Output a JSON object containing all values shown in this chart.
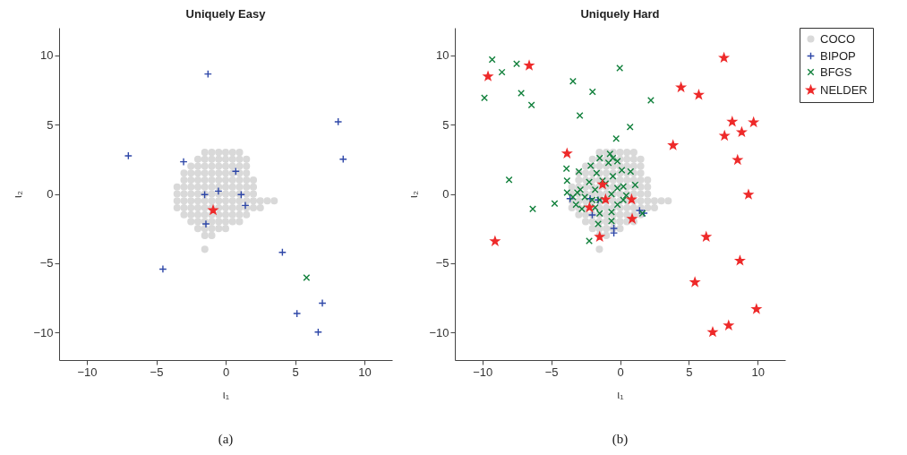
{
  "chart_data": [
    {
      "type": "scatter",
      "title": "Uniquely Easy",
      "xlabel": "ι₁",
      "ylabel": "ι₂",
      "xlim": [
        -12,
        12
      ],
      "ylim": [
        -12,
        12
      ],
      "xticks": [
        -10,
        -5,
        0,
        5,
        10
      ],
      "yticks": [
        -10,
        -5,
        0,
        5,
        10
      ],
      "grid": false,
      "annotations": [
        "(a)"
      ],
      "series": [
        {
          "color": "#d9d9d9",
          "marker": "circle",
          "x": [
            -1.5,
            -1,
            -0.5,
            0,
            0.5,
            1,
            -2,
            -1.5,
            -1,
            -0.5,
            0,
            0.5,
            1,
            1.5,
            -2.5,
            -2,
            -1.5,
            -1,
            -0.5,
            0,
            0.5,
            1,
            1.5,
            -3,
            -2.5,
            -2,
            -1.5,
            -1,
            -0.5,
            0,
            0.5,
            1,
            1.5,
            -3,
            -2.5,
            -2,
            -1.5,
            -1,
            -0.5,
            0,
            0.5,
            1,
            1.5,
            2,
            -3.5,
            -3,
            -2.5,
            -2,
            -1.5,
            -1,
            -0.5,
            0,
            0.5,
            1,
            1.5,
            2,
            -3.5,
            -3,
            -2.5,
            -2,
            -1.5,
            -1,
            -0.5,
            0,
            0.5,
            1,
            1.5,
            2,
            -3.5,
            -3,
            -2.5,
            -2,
            -1.5,
            -1,
            -0.5,
            0,
            0.5,
            1,
            1.5,
            2,
            2.5,
            3,
            3.5,
            -3.5,
            -3,
            -2.5,
            -2,
            -1.5,
            -1,
            -0.5,
            0,
            0.5,
            1,
            1.5,
            2,
            2.5,
            -3,
            -2.5,
            -2,
            -1.5,
            -1,
            -0.5,
            0,
            0.5,
            1,
            1.5,
            -2.5,
            -2,
            -1.5,
            -1,
            -0.5,
            0,
            0.5,
            1,
            -2,
            -1.5,
            -1,
            -0.5,
            0,
            -1.5,
            -1,
            -1.5
          ],
          "values": [
            3,
            3,
            3,
            3,
            3,
            3,
            2.5,
            2.5,
            2.5,
            2.5,
            2.5,
            2.5,
            2.5,
            2.5,
            2,
            2,
            2,
            2,
            2,
            2,
            2,
            2,
            2,
            1.5,
            1.5,
            1.5,
            1.5,
            1.5,
            1.5,
            1.5,
            1.5,
            1.5,
            1.5,
            1,
            1,
            1,
            1,
            1,
            1,
            1,
            1,
            1,
            1,
            1,
            0.5,
            0.5,
            0.5,
            0.5,
            0.5,
            0.5,
            0.5,
            0.5,
            0.5,
            0.5,
            0.5,
            0.5,
            0,
            0,
            0,
            0,
            0,
            0,
            0,
            0,
            0,
            0,
            0,
            0,
            -0.5,
            -0.5,
            -0.5,
            -0.5,
            -0.5,
            -0.5,
            -0.5,
            -0.5,
            -0.5,
            -0.5,
            -0.5,
            -0.5,
            -0.5,
            -0.5,
            -0.5,
            -1,
            -1,
            -1,
            -1,
            -1,
            -1,
            -1,
            -1,
            -1,
            -1,
            -1,
            -1,
            -1,
            -1.5,
            -1.5,
            -1.5,
            -1.5,
            -1.5,
            -1.5,
            -1.5,
            -1.5,
            -1.5,
            -1.5,
            -2,
            -2,
            -2,
            -2,
            -2,
            -2,
            -2,
            -2,
            -2.5,
            -2.5,
            -2.5,
            -2.5,
            -2.5,
            -3,
            -3,
            -4
          ]
        },
        {
          "color": "#2e47a8",
          "marker": "cross",
          "x": [
            -1.27,
            -7.01,
            -3.03,
            0.73,
            -1.51,
            -0.52,
            1.12,
            1.42,
            -1.42,
            8.11,
            8.47,
            -4.52,
            4.09,
            5.14,
            6.97,
            6.67
          ],
          "values": [
            8.66,
            2.75,
            2.32,
            1.63,
            -0.05,
            0.2,
            -0.05,
            -0.83,
            -2.17,
            5.21,
            2.51,
            -5.43,
            -4.22,
            -8.64,
            -7.89,
            -9.98
          ]
        },
        {
          "color": "#0f7f3a",
          "marker": "x",
          "x": [
            5.83
          ],
          "values": [
            -6.05
          ]
        },
        {
          "color": "#ee2a2a",
          "marker": "star",
          "x": [
            -0.9
          ],
          "values": [
            -1.18
          ]
        }
      ]
    },
    {
      "type": "scatter",
      "title": "Uniquely Hard",
      "xlabel": "ι₁",
      "ylabel": "ι₂",
      "xlim": [
        -12,
        12
      ],
      "ylim": [
        -12,
        12
      ],
      "xticks": [
        -10,
        -5,
        0,
        5,
        10
      ],
      "yticks": [
        -10,
        -5,
        0,
        5,
        10
      ],
      "grid": false,
      "legend": "top right",
      "annotations": [
        "(b)"
      ],
      "series": [
        {
          "name": "COCO",
          "color": "#d9d9d9",
          "marker": "circle",
          "x": [
            -1.5,
            -1,
            -0.5,
            0,
            0.5,
            1,
            -2,
            -1.5,
            -1,
            -0.5,
            0,
            0.5,
            1,
            1.5,
            -2.5,
            -2,
            -1.5,
            -1,
            -0.5,
            0,
            0.5,
            1,
            1.5,
            -3,
            -2.5,
            -2,
            -1.5,
            -1,
            -0.5,
            0,
            0.5,
            1,
            1.5,
            -3,
            -2.5,
            -2,
            -1.5,
            -1,
            -0.5,
            0,
            0.5,
            1,
            1.5,
            2,
            -3.5,
            -3,
            -2.5,
            -2,
            -1.5,
            -1,
            -0.5,
            0,
            0.5,
            1,
            1.5,
            2,
            -3.5,
            -3,
            -2.5,
            -2,
            -1.5,
            -1,
            -0.5,
            0,
            0.5,
            1,
            1.5,
            2,
            -3.5,
            -3,
            -2.5,
            -2,
            -1.5,
            -1,
            -0.5,
            0,
            0.5,
            1,
            1.5,
            2,
            2.5,
            3,
            3.5,
            -3.5,
            -3,
            -2.5,
            -2,
            -1.5,
            -1,
            -0.5,
            0,
            0.5,
            1,
            1.5,
            2,
            2.5,
            -3,
            -2.5,
            -2,
            -1.5,
            -1,
            -0.5,
            0,
            0.5,
            1,
            1.5,
            -2.5,
            -2,
            -1.5,
            -1,
            -0.5,
            0,
            0.5,
            1,
            -2,
            -1.5,
            -1,
            -0.5,
            0,
            -1.5,
            -1,
            -1.5
          ],
          "values": [
            3,
            3,
            3,
            3,
            3,
            3,
            2.5,
            2.5,
            2.5,
            2.5,
            2.5,
            2.5,
            2.5,
            2.5,
            2,
            2,
            2,
            2,
            2,
            2,
            2,
            2,
            2,
            1.5,
            1.5,
            1.5,
            1.5,
            1.5,
            1.5,
            1.5,
            1.5,
            1.5,
            1.5,
            1,
            1,
            1,
            1,
            1,
            1,
            1,
            1,
            1,
            1,
            1,
            0.5,
            0.5,
            0.5,
            0.5,
            0.5,
            0.5,
            0.5,
            0.5,
            0.5,
            0.5,
            0.5,
            0.5,
            0,
            0,
            0,
            0,
            0,
            0,
            0,
            0,
            0,
            0,
            0,
            0,
            -0.5,
            -0.5,
            -0.5,
            -0.5,
            -0.5,
            -0.5,
            -0.5,
            -0.5,
            -0.5,
            -0.5,
            -0.5,
            -0.5,
            -0.5,
            -0.5,
            -0.5,
            -1,
            -1,
            -1,
            -1,
            -1,
            -1,
            -1,
            -1,
            -1,
            -1,
            -1,
            -1,
            -1,
            -1.5,
            -1.5,
            -1.5,
            -1.5,
            -1.5,
            -1.5,
            -1.5,
            -1.5,
            -1.5,
            -1.5,
            -2,
            -2,
            -2,
            -2,
            -2,
            -2,
            -2,
            -2,
            -2.5,
            -2.5,
            -2.5,
            -2.5,
            -2.5,
            -3,
            -3,
            -4
          ]
        },
        {
          "name": "BIPOP",
          "color": "#2e47a8",
          "marker": "cross",
          "x": [
            -3.63,
            -2.17,
            -1.59,
            -2.02,
            -0.45,
            -0.45,
            1.42,
            1.74
          ],
          "values": [
            -0.34,
            -0.34,
            -0.44,
            -1.52,
            -2.49,
            -2.82,
            -1.2,
            -1.39
          ]
        },
        {
          "name": "BFGS",
          "color": "#0f7f3a",
          "marker": "x",
          "x": [
            -9.29,
            -9.85,
            -8.58,
            -7.51,
            -7.18,
            -6.43,
            -8.06,
            -6.34,
            -4.75,
            -3.42,
            -2,
            -2.92,
            -0.02,
            2.24,
            0.73,
            -0.28,
            -2.24,
            -3.89,
            -3.85,
            -2.99,
            -2.13,
            -1.48,
            -0.73,
            -0.52,
            -0.84,
            -0.19,
            0.13,
            0.77,
            -1.7,
            -2.24,
            -1.27,
            -0.52,
            0.24,
            1.1,
            -2.88,
            -3.42,
            -3.85,
            -3.2,
            -2.77,
            -1.81,
            -1.48,
            -0.62,
            -0.19,
            0.24,
            -0.62,
            -1.48,
            -0.62,
            1.63,
            -1.59,
            -2.02,
            -2.56,
            -3.1,
            -1.05,
            -1.81,
            -0.19,
            0.45
          ],
          "values": [
            9.7,
            6.94,
            8.79,
            9.4,
            7.28,
            6.42,
            1.02,
            -1.09,
            -0.7,
            8.14,
            7.37,
            5.66,
            9.09,
            6.76,
            4.84,
            4,
            -3.4,
            1.82,
            0.96,
            1.61,
            2.04,
            2.58,
            2.9,
            2.58,
            2.25,
            2.36,
            1.72,
            1.61,
            1.5,
            0.85,
            0.96,
            1.28,
            0.53,
            0.64,
            0.31,
            -0.23,
            0.1,
            -0.77,
            -1.09,
            -0.98,
            -0.44,
            -0.01,
            -0.77,
            -0.44,
            -1.31,
            -1.41,
            -1.95,
            -1.41,
            -2.17,
            -0.44,
            -0.23,
            0.1,
            0.74,
            0.31,
            0.42,
            -0.12
          ]
        },
        {
          "name": "NELDER",
          "color": "#ee2a2a",
          "marker": "star",
          "x": [
            -9.59,
            -6.6,
            7.55,
            4.43,
            5.72,
            8.15,
            9.7,
            7.59,
            8.84,
            3.85,
            8.54,
            9.33,
            -3.85,
            -9.08,
            6.26,
            8.71,
            5.44,
            6.73,
            7.89,
            9.91,
            -2.22,
            -1.05,
            0.84,
            0.88,
            -1.48,
            -1.27
          ],
          "values": [
            8.49,
            9.27,
            9.83,
            7.69,
            7.15,
            5.21,
            5.17,
            4.2,
            4.46,
            3.51,
            2.45,
            -0.05,
            2.92,
            -3.42,
            -3.1,
            -4.82,
            -6.38,
            -9.98,
            -9.5,
            -8.32,
            -0.98,
            -0.4,
            -0.4,
            -1.8,
            -3.1,
            0.68
          ]
        }
      ]
    }
  ]
}
